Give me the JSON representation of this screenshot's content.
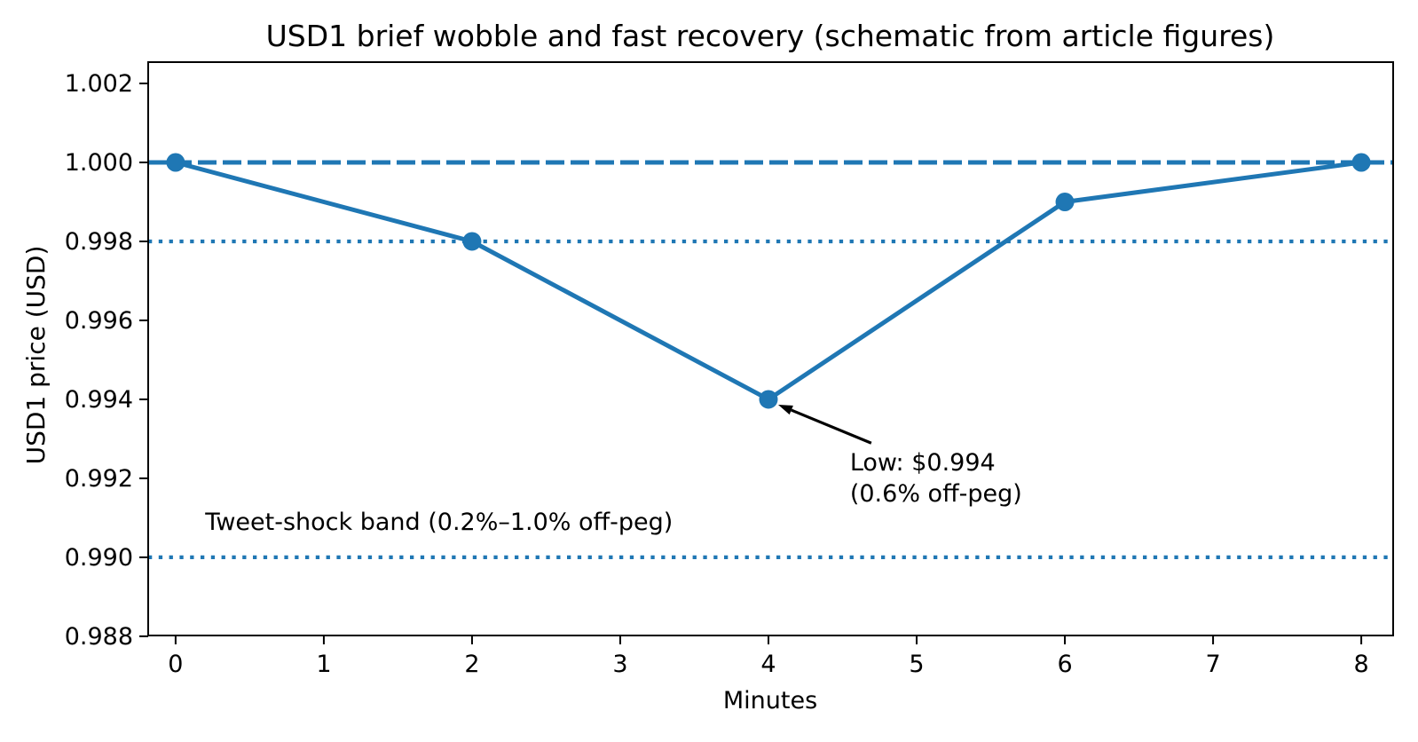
{
  "chart_data": {
    "type": "line",
    "title": "USD1 brief wobble and fast recovery (schematic from article figures)",
    "xlabel": "Minutes",
    "ylabel": "USD1 price (USD)",
    "x": [
      0,
      2,
      4,
      6,
      8
    ],
    "y": [
      1.0,
      0.998,
      0.994,
      0.999,
      1.0
    ],
    "xticks": [
      0,
      1,
      2,
      3,
      4,
      5,
      6,
      7,
      8
    ],
    "yticks": [
      0.988,
      0.99,
      0.992,
      0.994,
      0.996,
      0.998,
      1.0,
      1.002
    ],
    "xlim": [
      -0.185,
      8.215
    ],
    "ylim": [
      0.98802,
      1.00254
    ],
    "grid": false,
    "legend": "none",
    "series_color": "#1f77b4",
    "marker": "circle",
    "ref_lines": [
      {
        "name": "peg-line",
        "y": 1.0,
        "style": "dashed",
        "color": "#1f77b4"
      },
      {
        "name": "band-upper-line",
        "y": 0.998,
        "style": "dotted",
        "color": "#1f77b4"
      },
      {
        "name": "band-lower-line",
        "y": 0.99,
        "style": "dotted",
        "color": "#1f77b4"
      }
    ],
    "annotation": {
      "line1": "Low: $0.994",
      "line2": "(0.6% off-peg)",
      "point": [
        4,
        0.994
      ],
      "text_at": [
        4.55,
        0.99287
      ],
      "arrow_color": "#000000"
    },
    "band_label": {
      "text": "Tweet-shock band (0.2%–1.0% off-peg)",
      "at": [
        0.2,
        0.99096
      ]
    }
  }
}
